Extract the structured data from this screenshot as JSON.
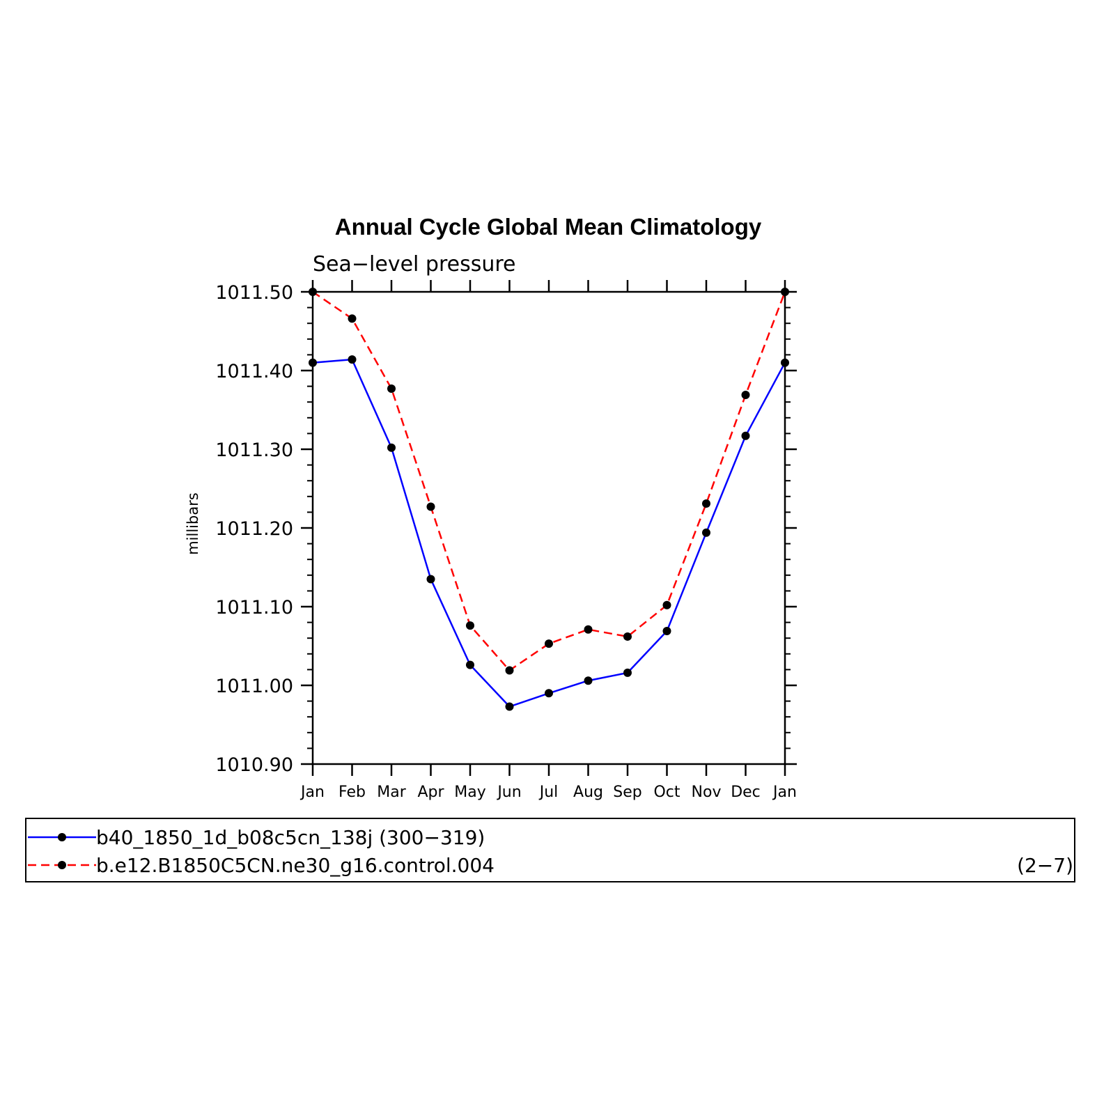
{
  "chart_data": {
    "type": "line",
    "title": "Annual Cycle Global Mean Climatology",
    "subtitle": "Sea−level pressure",
    "ylabel": "millibars",
    "xlabel": "",
    "categories": [
      "Jan",
      "Feb",
      "Mar",
      "Apr",
      "May",
      "Jun",
      "Jul",
      "Aug",
      "Sep",
      "Oct",
      "Nov",
      "Dec",
      "Jan"
    ],
    "ylim": [
      1010.9,
      1011.5
    ],
    "yticks": [
      "1010.90",
      "1011.00",
      "1011.10",
      "1011.20",
      "1011.30",
      "1011.40",
      "1011.50"
    ],
    "series": [
      {
        "name": "b40_1850_1d_b08c5cn_138j (300−319)",
        "color": "#0000ff",
        "dash": "solid",
        "marker": "filled-circle",
        "values": [
          1011.41,
          1011.414,
          1011.302,
          1011.135,
          1011.026,
          1010.973,
          1010.99,
          1011.006,
          1011.016,
          1011.069,
          1011.194,
          1011.317,
          1011.41
        ]
      },
      {
        "name": "b.e12.B1850C5CN.ne30_g16.control.004",
        "color": "#ff0000",
        "dash": "dashed",
        "marker": "filled-circle",
        "values": [
          1011.5,
          1011.466,
          1011.377,
          1011.227,
          1011.076,
          1011.019,
          1011.053,
          1011.071,
          1011.062,
          1011.102,
          1011.231,
          1011.369,
          1011.5
        ]
      }
    ],
    "legend_position": "bottom",
    "legend_note": "(2−7)",
    "grid": false
  }
}
